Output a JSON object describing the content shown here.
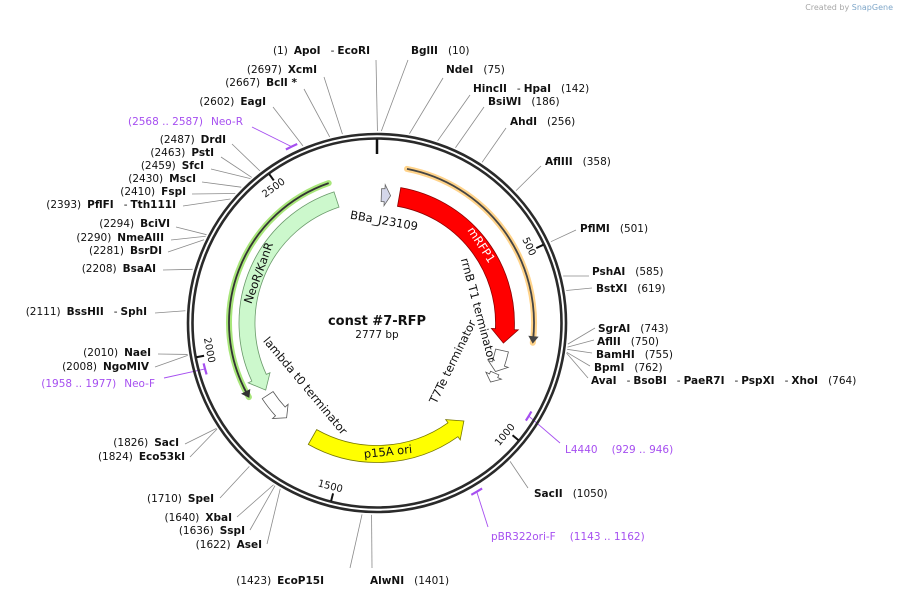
{
  "watermark": {
    "prefix": "Created by",
    "brand": "SnapGene"
  },
  "plasmid": {
    "name": "const #7-RFP",
    "length_label": "2777 bp",
    "length_bp": 2777
  },
  "ticks": [
    {
      "bp": 500,
      "label": "500"
    },
    {
      "bp": 1000,
      "label": "1000"
    },
    {
      "bp": 1500,
      "label": "1500"
    },
    {
      "bp": 2000,
      "label": "2000"
    },
    {
      "bp": 2500,
      "label": "2500"
    }
  ],
  "features": [
    {
      "name": "mRFP1",
      "start": 77,
      "end": 764,
      "color": "#ff0000",
      "stroke": "#8a0000",
      "text_color": "#ffffff"
    },
    {
      "name": "NeoR/KanR",
      "start": 2637,
      "end": 1843,
      "color": "#ccf8cc",
      "stroke": "#6a9a6a",
      "text_color": "#111111"
    },
    {
      "name": "p15A ori",
      "start": 1616,
      "end": 1068,
      "color": "#ffff00",
      "stroke": "#777700",
      "text_color": "#111111"
    },
    {
      "name": "BBa_J23109",
      "start": 15,
      "end": 47,
      "color": "#d4d7ea",
      "stroke": "#666666",
      "text_color": "#111111"
    },
    {
      "name": "rrnB T1 terminator",
      "start": 790,
      "end": 866,
      "color": "#ffffff",
      "stroke": "#555555",
      "text_color": "#111111"
    },
    {
      "name": "T7Te terminator",
      "start": 872,
      "end": 906,
      "color": "#ffffff",
      "stroke": "#555555",
      "text_color": "#111111"
    },
    {
      "name": "lambda t0 terminator",
      "start": 1825,
      "end": 1725,
      "color": "#ffffff",
      "stroke": "#555555",
      "text_color": "#111111"
    }
  ],
  "orfs": [
    {
      "of": "mRFP1",
      "start": 85,
      "end": 750,
      "color": "#444444",
      "halo": "#ffd38a"
    },
    {
      "of": "NeoR/KanR",
      "start": 2630,
      "end": 1851,
      "color": "#333333",
      "halo": "#a8e67a"
    }
  ],
  "enzymes": [
    {
      "names": [
        "ApoI",
        "EcoRI"
      ],
      "pos": "(1)",
      "bp": 1
    },
    {
      "names": [
        "XcmI"
      ],
      "pos": "(2697)",
      "bp": 2697
    },
    {
      "names": [
        "BclI *"
      ],
      "pos": "(2667)",
      "bp": 2667
    },
    {
      "names": [
        "EagI"
      ],
      "pos": "(2602)",
      "bp": 2602
    },
    {
      "names": [
        "DrdI"
      ],
      "pos": "(2487)",
      "bp": 2487
    },
    {
      "names": [
        "PstI"
      ],
      "pos": "(2463)",
      "bp": 2463
    },
    {
      "names": [
        "SfcI"
      ],
      "pos": "(2459)",
      "bp": 2459
    },
    {
      "names": [
        "MscI"
      ],
      "pos": "(2430)",
      "bp": 2430
    },
    {
      "names": [
        "FspI"
      ],
      "pos": "(2410)",
      "bp": 2410
    },
    {
      "names": [
        "PflFI",
        "Tth111I"
      ],
      "pos": "(2393)",
      "bp": 2393
    },
    {
      "names": [
        "BciVI"
      ],
      "pos": "(2294)",
      "bp": 2294
    },
    {
      "names": [
        "NmeAIII"
      ],
      "pos": "(2290)",
      "bp": 2290
    },
    {
      "names": [
        "BsrDI"
      ],
      "pos": "(2281)",
      "bp": 2281
    },
    {
      "names": [
        "BsaAI"
      ],
      "pos": "(2208)",
      "bp": 2208
    },
    {
      "names": [
        "BssHII",
        "SphI"
      ],
      "pos": "(2111)",
      "bp": 2111
    },
    {
      "names": [
        "NaeI"
      ],
      "pos": "(2010)",
      "bp": 2010
    },
    {
      "names": [
        "NgoMIV"
      ],
      "pos": "(2008)",
      "bp": 2008
    },
    {
      "names": [
        "SacI"
      ],
      "pos": "(1826)",
      "bp": 1826
    },
    {
      "names": [
        "Eco53kI"
      ],
      "pos": "(1824)",
      "bp": 1824
    },
    {
      "names": [
        "SpeI"
      ],
      "pos": "(1710)",
      "bp": 1710
    },
    {
      "names": [
        "XbaI"
      ],
      "pos": "(1640)",
      "bp": 1640
    },
    {
      "names": [
        "SspI"
      ],
      "pos": "(1636)",
      "bp": 1636
    },
    {
      "names": [
        "AseI"
      ],
      "pos": "(1622)",
      "bp": 1622
    },
    {
      "names": [
        "EcoP15I"
      ],
      "pos": "(1423)",
      "bp": 1423
    },
    {
      "names": [
        "AlwNI"
      ],
      "pos": "(1401)",
      "bp": 1401
    },
    {
      "names": [
        "SacII"
      ],
      "pos": "(1050)",
      "bp": 1050
    },
    {
      "names": [
        "AvaI",
        "BsoBI",
        "PaeR7I",
        "PspXI",
        "XhoI"
      ],
      "pos": "(764)",
      "bp": 764
    },
    {
      "names": [
        "BpmI"
      ],
      "pos": "(762)",
      "bp": 762
    },
    {
      "names": [
        "BamHI"
      ],
      "pos": "(755)",
      "bp": 755
    },
    {
      "names": [
        "AflII"
      ],
      "pos": "(750)",
      "bp": 750
    },
    {
      "names": [
        "SgrAI"
      ],
      "pos": "(743)",
      "bp": 743
    },
    {
      "names": [
        "BstXI"
      ],
      "pos": "(619)",
      "bp": 619
    },
    {
      "names": [
        "PshAI"
      ],
      "pos": "(585)",
      "bp": 585
    },
    {
      "names": [
        "PflMI"
      ],
      "pos": "(501)",
      "bp": 501
    },
    {
      "names": [
        "AflIII"
      ],
      "pos": "(358)",
      "bp": 358
    },
    {
      "names": [
        "AhdI"
      ],
      "pos": "(256)",
      "bp": 256
    },
    {
      "names": [
        "BsiWI"
      ],
      "pos": "(186)",
      "bp": 186
    },
    {
      "names": [
        "HincII",
        "HpaI"
      ],
      "pos": "(142)",
      "bp": 142
    },
    {
      "names": [
        "NdeI"
      ],
      "pos": "(75)",
      "bp": 75
    },
    {
      "names": [
        "BglII"
      ],
      "pos": "(10)",
      "bp": 10
    }
  ],
  "primers": [
    {
      "name": "Neo-R",
      "range": "(2568 .. 2587)",
      "start": 2568,
      "end": 2587,
      "color": "#a64ff0"
    },
    {
      "name": "Neo-F",
      "range": "(1958 .. 1977)",
      "start": 1958,
      "end": 1977,
      "color": "#a64ff0"
    },
    {
      "name": "L4440",
      "range": "(929 .. 946)",
      "start": 929,
      "end": 946,
      "color": "#a64ff0"
    },
    {
      "name": "pBR322ori-F",
      "range": "(1143 .. 1162)",
      "start": 1143,
      "end": 1162,
      "color": "#a64ff0"
    }
  ]
}
